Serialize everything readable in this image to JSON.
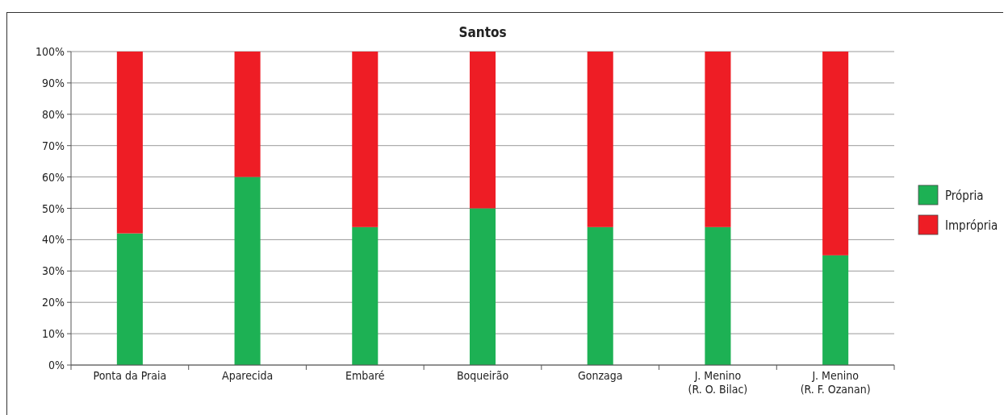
{
  "chart_data": {
    "type": "bar",
    "title": "Santos",
    "stacked": true,
    "categories": [
      "Ponta da Praia",
      "Aparecida",
      "Embaré",
      "Boqueirão",
      "Gonzaga",
      "J. Menino\n(R. O. Bilac)",
      "J. Menino\n(R. F. Ozanan)"
    ],
    "series": [
      {
        "name": "Própria",
        "color": "#1db154",
        "values": [
          42,
          60,
          44,
          50,
          44,
          44,
          35
        ]
      },
      {
        "name": "Imprópria",
        "color": "#ee1d25",
        "values": [
          58,
          40,
          56,
          50,
          56,
          56,
          65
        ]
      }
    ],
    "ylim": [
      0,
      100
    ],
    "yticks": [
      {
        "value": 0,
        "label": "0%"
      },
      {
        "value": 10,
        "label": "10%"
      },
      {
        "value": 20,
        "label": "20%"
      },
      {
        "value": 30,
        "label": "30%"
      },
      {
        "value": 40,
        "label": "40%"
      },
      {
        "value": 50,
        "label": "50%"
      },
      {
        "value": 60,
        "label": "60%"
      },
      {
        "value": 70,
        "label": "70%"
      },
      {
        "value": 80,
        "label": "80%"
      },
      {
        "value": 90,
        "label": "90%"
      },
      {
        "value": 100,
        "label": "100%"
      }
    ],
    "grid": "y",
    "legend": "right"
  }
}
